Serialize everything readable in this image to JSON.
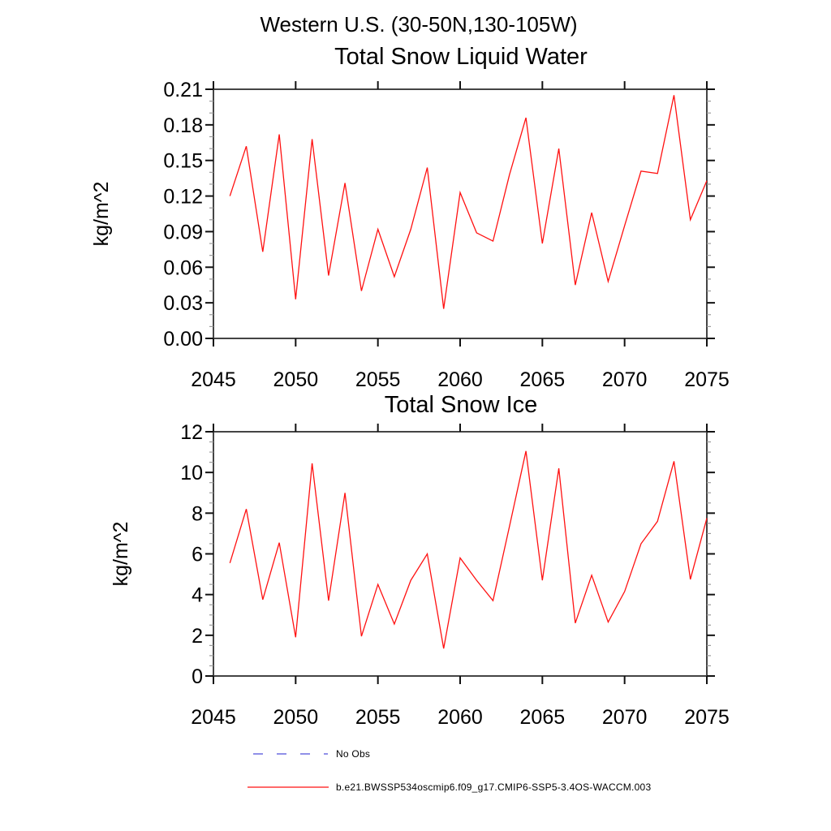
{
  "header": {
    "title": "Western U.S. (30-50N,130-105W)"
  },
  "colors": {
    "background": "#ffffff",
    "axis_box": "#444444",
    "major_tick": "#111111",
    "minor_tick": "#999999",
    "series_red": "#ff1111",
    "no_obs_blue": "#6b6be0",
    "text": "#000000"
  },
  "legend": {
    "items": [
      {
        "label": "No Obs",
        "style": "dashed",
        "color": "#6b6be0"
      },
      {
        "label": "b.e21.BWSSP534oscmip6.f09_g17.CMIP6-SSP5-3.4OS-WACCM.003",
        "style": "solid",
        "color": "#ff1111"
      }
    ]
  },
  "chart_data": [
    {
      "type": "line",
      "title": "Total Snow Liquid Water",
      "xlabel": "",
      "ylabel": "kg/m^2",
      "xlim": [
        2045,
        2075
      ],
      "ylim": [
        0,
        0.21
      ],
      "xticks": [
        2045,
        2050,
        2055,
        2060,
        2065,
        2070,
        2075
      ],
      "xtick_labels": [
        "2045",
        "2050",
        "2055",
        "2060",
        "2065",
        "2070",
        "2075"
      ],
      "yticks": [
        0,
        0.03,
        0.06,
        0.09,
        0.12,
        0.15,
        0.18,
        0.21
      ],
      "ytick_labels": [
        "0.00",
        "0.03",
        "0.06",
        "0.09",
        "0.12",
        "0.15",
        "0.18",
        "0.21"
      ],
      "y_minor_step": 0.01,
      "grid": false,
      "legend_position": "none",
      "series": [
        {
          "name": "b.e21.BWSSP534oscmip6.f09_g17.CMIP6-SSP5-3.4OS-WACCM.003",
          "color": "#ff1111",
          "x": [
            2046,
            2047,
            2048,
            2049,
            2050,
            2051,
            2052,
            2053,
            2054,
            2055,
            2056,
            2057,
            2058,
            2059,
            2060,
            2061,
            2062,
            2063,
            2064,
            2065,
            2066,
            2067,
            2068,
            2069,
            2070,
            2071,
            2072,
            2073,
            2074,
            2075
          ],
          "values": [
            0.12,
            0.162,
            0.073,
            0.172,
            0.033,
            0.168,
            0.053,
            0.131,
            0.04,
            0.092,
            0.052,
            0.092,
            0.144,
            0.025,
            0.123,
            0.089,
            0.082,
            0.138,
            0.186,
            0.08,
            0.16,
            0.045,
            0.106,
            0.048,
            0.095,
            0.141,
            0.139,
            0.205,
            0.1,
            0.133
          ]
        }
      ]
    },
    {
      "type": "line",
      "title": "Total Snow Ice",
      "xlabel": "",
      "ylabel": "kg/m^2",
      "xlim": [
        2045,
        2075
      ],
      "ylim": [
        0,
        12
      ],
      "xticks": [
        2045,
        2050,
        2055,
        2060,
        2065,
        2070,
        2075
      ],
      "xtick_labels": [
        "2045",
        "2050",
        "2055",
        "2060",
        "2065",
        "2070",
        "2075"
      ],
      "yticks": [
        0,
        2,
        4,
        6,
        8,
        10,
        12
      ],
      "ytick_labels": [
        "0",
        "2",
        "4",
        "6",
        "8",
        "10",
        "12"
      ],
      "y_minor_step": 0.5,
      "grid": false,
      "legend_position": "none",
      "series": [
        {
          "name": "b.e21.BWSSP534oscmip6.f09_g17.CMIP6-SSP5-3.4OS-WACCM.003",
          "color": "#ff1111",
          "x": [
            2046,
            2047,
            2048,
            2049,
            2050,
            2051,
            2052,
            2053,
            2054,
            2055,
            2056,
            2057,
            2058,
            2059,
            2060,
            2061,
            2062,
            2063,
            2064,
            2065,
            2066,
            2067,
            2068,
            2069,
            2070,
            2071,
            2072,
            2073,
            2074,
            2075
          ],
          "values": [
            5.55,
            8.2,
            3.75,
            6.55,
            1.9,
            10.45,
            3.7,
            9.0,
            1.95,
            4.5,
            2.55,
            4.7,
            6.0,
            1.35,
            5.8,
            4.7,
            3.7,
            7.35,
            11.05,
            4.7,
            10.2,
            2.6,
            4.95,
            2.65,
            4.15,
            6.5,
            7.6,
            10.55,
            4.75,
            7.75
          ]
        }
      ]
    }
  ]
}
